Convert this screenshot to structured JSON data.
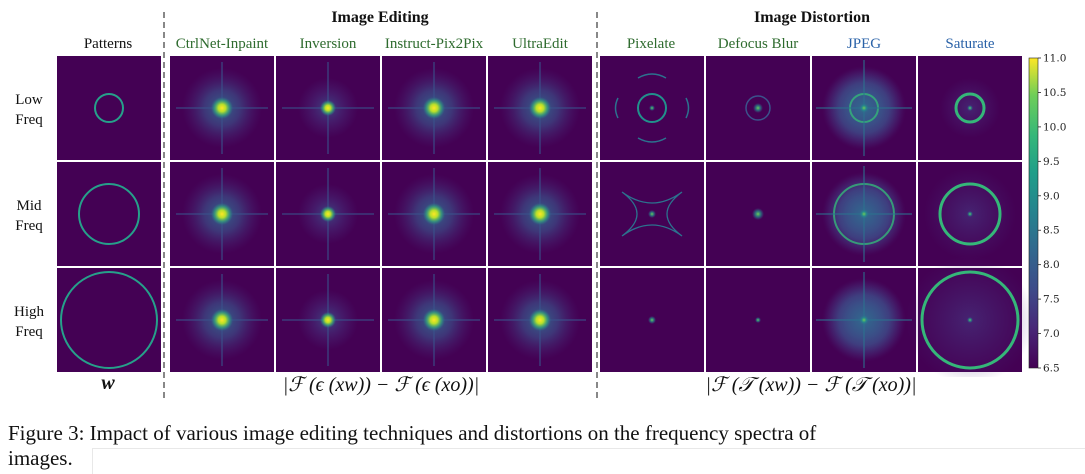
{
  "groups": {
    "editing": "Image Editing",
    "distortion": "Image Distortion"
  },
  "columns": {
    "patterns": "Patterns",
    "editing": [
      "CtrlNet-Inpaint",
      "Inversion",
      "Instruct-Pix2Pix",
      "UltraEdit"
    ],
    "distortion": [
      "Pixelate",
      "Defocus Blur",
      "JPEG",
      "Saturate"
    ]
  },
  "column_colors": {
    "patterns": "#111111",
    "editing": "#2e6b2e",
    "pixelate": "#2e6b2e",
    "defocus": "#2e6b2e",
    "jpeg": "#2a62a8",
    "saturate": "#2a62a8"
  },
  "rows": [
    {
      "line1": "Low",
      "line2": "Freq"
    },
    {
      "line1": "Mid",
      "line2": "Freq"
    },
    {
      "line1": "High",
      "line2": "Freq"
    }
  ],
  "formulas": {
    "patterns": "w",
    "editing": "|ℱ (ϵ (xw)) − ℱ (ϵ (xo))|",
    "distortion": "|ℱ (𝒯 (xw)) − ℱ (𝒯 (xo))|"
  },
  "colorbar": {
    "ticks": [
      "11.0",
      "10.5",
      "10.0",
      "9.5",
      "9.0",
      "8.5",
      "8.0",
      "7.5",
      "7.0",
      "6.5"
    ],
    "colormap": "viridis"
  },
  "caption": {
    "line1": "Figure 3: Impact of various image editing techniques and distortions on the frequency spectra of",
    "line2": "images."
  },
  "colors": {
    "panel_bg": "#440154",
    "ring": "#26a08a",
    "peak": "#fde725"
  }
}
